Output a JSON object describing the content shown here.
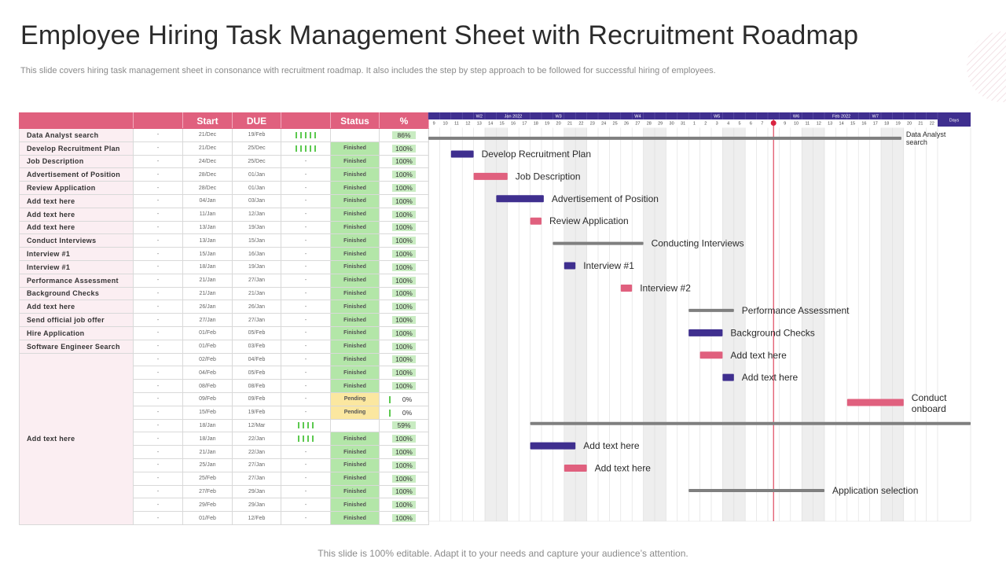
{
  "title": "Employee Hiring Task Management Sheet with Recruitment Roadmap",
  "subtitle": "This slide covers hiring task management sheet in consonance with recruitment roadmap. It also includes the step by step approach to be followed for successful hiring of employees.",
  "footer": "This slide is 100% editable. Adapt it to your needs and capture your audience’s attention.",
  "table": {
    "headers": {
      "start": "Start",
      "due": "DUE",
      "status": "Status",
      "pct": "%"
    },
    "rows": [
      {
        "name": "Data Analyst search",
        "dash": "-",
        "start": "21/Dec",
        "due": "19/Feb",
        "bars": 5,
        "status": "",
        "pct": "86%"
      },
      {
        "name": "Develop Recruitment Plan",
        "dash": "-",
        "start": "21/Dec",
        "due": "25/Dec",
        "bars": 5,
        "status": "Finished",
        "pct": "100%"
      },
      {
        "name": "Job Description",
        "dash": "-",
        "start": "24/Dec",
        "due": "25/Dec",
        "bars": 0,
        "status": "Finished",
        "pct": "100%"
      },
      {
        "name": "Advertisement of Position",
        "dash": "-",
        "start": "28/Dec",
        "due": "01/Jan",
        "bars": 0,
        "status": "Finished",
        "pct": "100%"
      },
      {
        "name": "Review Application",
        "dash": "-",
        "start": "28/Dec",
        "due": "01/Jan",
        "bars": 0,
        "status": "Finished",
        "pct": "100%"
      },
      {
        "name": "Add text here",
        "dash": "-",
        "start": "04/Jan",
        "due": "03/Jan",
        "bars": 0,
        "status": "Finished",
        "pct": "100%"
      },
      {
        "name": "Add text here",
        "dash": "-",
        "start": "11/Jan",
        "due": "12/Jan",
        "bars": 0,
        "status": "Finished",
        "pct": "100%"
      },
      {
        "name": "Add text here",
        "dash": "-",
        "start": "13/Jan",
        "due": "19/Jan",
        "bars": 0,
        "status": "Finished",
        "pct": "100%"
      },
      {
        "name": "Conduct Interviews",
        "dash": "-",
        "start": "13/Jan",
        "due": "15/Jan",
        "bars": 0,
        "status": "Finished",
        "pct": "100%"
      },
      {
        "name": "Interview #1",
        "dash": "-",
        "start": "15/Jan",
        "due": "16/Jan",
        "bars": 0,
        "status": "Finished",
        "pct": "100%"
      },
      {
        "name": "Interview #1",
        "dash": "-",
        "start": "18/Jan",
        "due": "19/Jan",
        "bars": 0,
        "status": "Finished",
        "pct": "100%"
      },
      {
        "name": "Performance Assessment",
        "dash": "-",
        "start": "21/Jan",
        "due": "27/Jan",
        "bars": 0,
        "status": "Finished",
        "pct": "100%"
      },
      {
        "name": "Background Checks",
        "dash": "-",
        "start": "21/Jan",
        "due": "21/Jan",
        "bars": 0,
        "status": "Finished",
        "pct": "100%"
      },
      {
        "name": "Add text here",
        "dash": "-",
        "start": "26/Jan",
        "due": "26/Jan",
        "bars": 0,
        "status": "Finished",
        "pct": "100%"
      },
      {
        "name": "Send official job offer",
        "dash": "-",
        "start": "27/Jan",
        "due": "27/Jan",
        "bars": 0,
        "status": "Finished",
        "pct": "100%"
      },
      {
        "name": "Hire Application",
        "dash": "-",
        "start": "01/Feb",
        "due": "05/Feb",
        "bars": 0,
        "status": "Finished",
        "pct": "100%"
      },
      {
        "name": "Software Engineer Search",
        "dash": "-",
        "start": "01/Feb",
        "due": "03/Feb",
        "bars": 0,
        "status": "Finished",
        "pct": "100%"
      },
      {
        "name": "",
        "dash": "-",
        "start": "02/Feb",
        "due": "04/Feb",
        "bars": 0,
        "status": "Finished",
        "pct": "100%"
      },
      {
        "name": "",
        "dash": "-",
        "start": "04/Feb",
        "due": "05/Feb",
        "bars": 0,
        "status": "Finished",
        "pct": "100%"
      },
      {
        "name": "",
        "dash": "-",
        "start": "08/Feb",
        "due": "08/Feb",
        "bars": 0,
        "status": "Finished",
        "pct": "100%"
      },
      {
        "name": "",
        "dash": "-",
        "start": "09/Feb",
        "due": "09/Feb",
        "bars": 0,
        "status": "Pending",
        "pct": "0%"
      },
      {
        "name": "",
        "dash": "-",
        "start": "15/Feb",
        "due": "19/Feb",
        "bars": 0,
        "status": "Pending",
        "pct": "0%"
      },
      {
        "name": "",
        "dash": "-",
        "start": "18/Jan",
        "due": "12/Mar",
        "bars": 4,
        "status": "",
        "pct": "59%"
      },
      {
        "name": "",
        "dash": "-",
        "start": "18/Jan",
        "due": "22/Jan",
        "bars": 4,
        "status": "Finished",
        "pct": "100%"
      },
      {
        "name": "",
        "dash": "-",
        "start": "21/Jan",
        "due": "22/Jan",
        "bars": 0,
        "status": "Finished",
        "pct": "100%"
      },
      {
        "name": "",
        "dash": "-",
        "start": "25/Jan",
        "due": "27/Jan",
        "bars": 0,
        "status": "Finished",
        "pct": "100%"
      },
      {
        "name": "",
        "dash": "-",
        "start": "25/Feb",
        "due": "27/Jan",
        "bars": 0,
        "status": "Finished",
        "pct": "100%"
      },
      {
        "name": "",
        "dash": "-",
        "start": "27/Feb",
        "due": "29/Jan",
        "bars": 0,
        "status": "Finished",
        "pct": "100%"
      },
      {
        "name": "",
        "dash": "-",
        "start": "29/Feb",
        "due": "29/Jan",
        "bars": 0,
        "status": "Finished",
        "pct": "100%"
      },
      {
        "name": "",
        "dash": "-",
        "start": "01/Feb",
        "due": "12/Feb",
        "bars": 0,
        "status": "Finished",
        "pct": "100%"
      }
    ],
    "merged_label": "Add text here"
  },
  "gantt": {
    "week_labels": [
      {
        "text": "W2",
        "col": 4
      },
      {
        "text": "Jan 2022",
        "col": 7
      },
      {
        "text": "W3",
        "col": 11
      },
      {
        "text": "W4",
        "col": 18
      },
      {
        "text": "W5",
        "col": 25
      },
      {
        "text": "W6",
        "col": 32
      },
      {
        "text": "Feb 2022",
        "col": 36
      },
      {
        "text": "W7",
        "col": 39
      }
    ],
    "days_label": "Days",
    "days": [
      "9",
      "10",
      "11",
      "12",
      "13",
      "14",
      "15",
      "16",
      "17",
      "18",
      "19",
      "20",
      "21",
      "22",
      "23",
      "24",
      "25",
      "26",
      "27",
      "28",
      "29",
      "30",
      "31",
      "1",
      "2",
      "3",
      "4",
      "5",
      "6",
      "7",
      "8",
      "9",
      "10",
      "11",
      "12",
      "13",
      "14",
      "15",
      "16",
      "17",
      "18",
      "19",
      "20",
      "21",
      "22"
    ],
    "today_col": 30,
    "shaded_cols": [
      5,
      6,
      12,
      13,
      19,
      20,
      26,
      27,
      33,
      34,
      40,
      41
    ],
    "colors": {
      "header": "#3f2f8f",
      "purple": "#3f2f8f",
      "pink": "#e0607e",
      "gray": "#7f7f7f",
      "today": "#d9233f",
      "finished": "#b3e6a8",
      "pending": "#fbe7a0"
    },
    "tasks": [
      {
        "label": "Data Analyst search",
        "color": "gray",
        "from": 0,
        "to": 41.8,
        "row": 0.8
      },
      {
        "label": "Develop Recruitment Plan",
        "color": "purple",
        "from": 2,
        "to": 4,
        "row": 2
      },
      {
        "label": "Job Description",
        "color": "pink",
        "from": 4,
        "to": 7,
        "row": 3.7
      },
      {
        "label": "Advertisement of Position",
        "color": "purple",
        "from": 6,
        "to": 10.2,
        "row": 5.4
      },
      {
        "label": "Review Application",
        "color": "pink",
        "from": 9,
        "to": 10,
        "row": 7.1
      },
      {
        "label": "Conducting Interviews",
        "color": "gray",
        "from": 11,
        "to": 19,
        "row": 8.8
      },
      {
        "label": "Interview #1",
        "color": "purple",
        "from": 12,
        "to": 13,
        "row": 10.5
      },
      {
        "label": "Interview #2",
        "color": "pink",
        "from": 17,
        "to": 18,
        "row": 12.2
      },
      {
        "label": "Performance Assessment",
        "color": "gray",
        "from": 23,
        "to": 27,
        "row": 13.9
      },
      {
        "label": "Background Checks",
        "color": "purple",
        "from": 23,
        "to": 26,
        "row": 15.6
      },
      {
        "label": "Add text here",
        "color": "pink",
        "from": 24,
        "to": 26,
        "row": 17.3
      },
      {
        "label": "Add text here",
        "color": "purple",
        "from": 26,
        "to": 27,
        "row": 19
      },
      {
        "label": "Conduct onboard",
        "color": "pink",
        "from": 37,
        "to": 42,
        "row": 20.9
      },
      {
        "label": "",
        "color": "gray",
        "from": 9,
        "to": 48,
        "row": 22.5
      },
      {
        "label": "Add text here",
        "color": "purple",
        "from": 9,
        "to": 13,
        "row": 24.2
      },
      {
        "label": "Add text here",
        "color": "pink",
        "from": 12,
        "to": 14,
        "row": 25.9
      },
      {
        "label": "Application selection",
        "color": "gray",
        "from": 23,
        "to": 35,
        "row": 27.6
      }
    ]
  }
}
